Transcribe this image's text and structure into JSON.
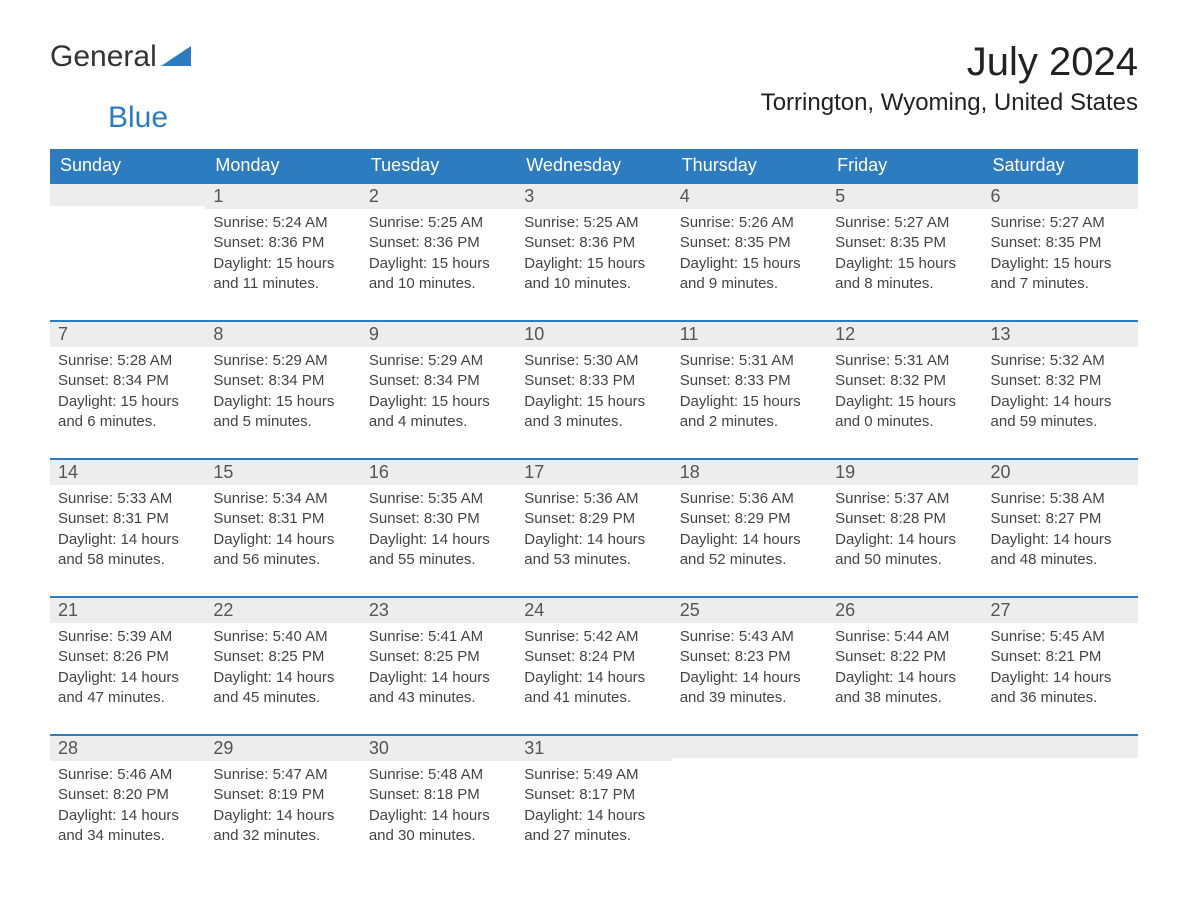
{
  "brand": {
    "general": "General",
    "blue": "Blue"
  },
  "title": {
    "month": "July 2024",
    "location": "Torrington, Wyoming, United States"
  },
  "colors": {
    "header_bg": "#2e7cc0",
    "header_text": "#ffffff",
    "daynum_bg": "#ededed",
    "daynum_border": "#2e7cc0",
    "body_bg": "#ffffff",
    "text": "#333333",
    "brand_blue": "#2e7cc0"
  },
  "weekdays": [
    "Sunday",
    "Monday",
    "Tuesday",
    "Wednesday",
    "Thursday",
    "Friday",
    "Saturday"
  ],
  "weeks": [
    [
      {
        "n": "",
        "sr": "",
        "ss": "",
        "dl": ""
      },
      {
        "n": "1",
        "sr": "Sunrise: 5:24 AM",
        "ss": "Sunset: 8:36 PM",
        "dl": "Daylight: 15 hours and 11 minutes."
      },
      {
        "n": "2",
        "sr": "Sunrise: 5:25 AM",
        "ss": "Sunset: 8:36 PM",
        "dl": "Daylight: 15 hours and 10 minutes."
      },
      {
        "n": "3",
        "sr": "Sunrise: 5:25 AM",
        "ss": "Sunset: 8:36 PM",
        "dl": "Daylight: 15 hours and 10 minutes."
      },
      {
        "n": "4",
        "sr": "Sunrise: 5:26 AM",
        "ss": "Sunset: 8:35 PM",
        "dl": "Daylight: 15 hours and 9 minutes."
      },
      {
        "n": "5",
        "sr": "Sunrise: 5:27 AM",
        "ss": "Sunset: 8:35 PM",
        "dl": "Daylight: 15 hours and 8 minutes."
      },
      {
        "n": "6",
        "sr": "Sunrise: 5:27 AM",
        "ss": "Sunset: 8:35 PM",
        "dl": "Daylight: 15 hours and 7 minutes."
      }
    ],
    [
      {
        "n": "7",
        "sr": "Sunrise: 5:28 AM",
        "ss": "Sunset: 8:34 PM",
        "dl": "Daylight: 15 hours and 6 minutes."
      },
      {
        "n": "8",
        "sr": "Sunrise: 5:29 AM",
        "ss": "Sunset: 8:34 PM",
        "dl": "Daylight: 15 hours and 5 minutes."
      },
      {
        "n": "9",
        "sr": "Sunrise: 5:29 AM",
        "ss": "Sunset: 8:34 PM",
        "dl": "Daylight: 15 hours and 4 minutes."
      },
      {
        "n": "10",
        "sr": "Sunrise: 5:30 AM",
        "ss": "Sunset: 8:33 PM",
        "dl": "Daylight: 15 hours and 3 minutes."
      },
      {
        "n": "11",
        "sr": "Sunrise: 5:31 AM",
        "ss": "Sunset: 8:33 PM",
        "dl": "Daylight: 15 hours and 2 minutes."
      },
      {
        "n": "12",
        "sr": "Sunrise: 5:31 AM",
        "ss": "Sunset: 8:32 PM",
        "dl": "Daylight: 15 hours and 0 minutes."
      },
      {
        "n": "13",
        "sr": "Sunrise: 5:32 AM",
        "ss": "Sunset: 8:32 PM",
        "dl": "Daylight: 14 hours and 59 minutes."
      }
    ],
    [
      {
        "n": "14",
        "sr": "Sunrise: 5:33 AM",
        "ss": "Sunset: 8:31 PM",
        "dl": "Daylight: 14 hours and 58 minutes."
      },
      {
        "n": "15",
        "sr": "Sunrise: 5:34 AM",
        "ss": "Sunset: 8:31 PM",
        "dl": "Daylight: 14 hours and 56 minutes."
      },
      {
        "n": "16",
        "sr": "Sunrise: 5:35 AM",
        "ss": "Sunset: 8:30 PM",
        "dl": "Daylight: 14 hours and 55 minutes."
      },
      {
        "n": "17",
        "sr": "Sunrise: 5:36 AM",
        "ss": "Sunset: 8:29 PM",
        "dl": "Daylight: 14 hours and 53 minutes."
      },
      {
        "n": "18",
        "sr": "Sunrise: 5:36 AM",
        "ss": "Sunset: 8:29 PM",
        "dl": "Daylight: 14 hours and 52 minutes."
      },
      {
        "n": "19",
        "sr": "Sunrise: 5:37 AM",
        "ss": "Sunset: 8:28 PM",
        "dl": "Daylight: 14 hours and 50 minutes."
      },
      {
        "n": "20",
        "sr": "Sunrise: 5:38 AM",
        "ss": "Sunset: 8:27 PM",
        "dl": "Daylight: 14 hours and 48 minutes."
      }
    ],
    [
      {
        "n": "21",
        "sr": "Sunrise: 5:39 AM",
        "ss": "Sunset: 8:26 PM",
        "dl": "Daylight: 14 hours and 47 minutes."
      },
      {
        "n": "22",
        "sr": "Sunrise: 5:40 AM",
        "ss": "Sunset: 8:25 PM",
        "dl": "Daylight: 14 hours and 45 minutes."
      },
      {
        "n": "23",
        "sr": "Sunrise: 5:41 AM",
        "ss": "Sunset: 8:25 PM",
        "dl": "Daylight: 14 hours and 43 minutes."
      },
      {
        "n": "24",
        "sr": "Sunrise: 5:42 AM",
        "ss": "Sunset: 8:24 PM",
        "dl": "Daylight: 14 hours and 41 minutes."
      },
      {
        "n": "25",
        "sr": "Sunrise: 5:43 AM",
        "ss": "Sunset: 8:23 PM",
        "dl": "Daylight: 14 hours and 39 minutes."
      },
      {
        "n": "26",
        "sr": "Sunrise: 5:44 AM",
        "ss": "Sunset: 8:22 PM",
        "dl": "Daylight: 14 hours and 38 minutes."
      },
      {
        "n": "27",
        "sr": "Sunrise: 5:45 AM",
        "ss": "Sunset: 8:21 PM",
        "dl": "Daylight: 14 hours and 36 minutes."
      }
    ],
    [
      {
        "n": "28",
        "sr": "Sunrise: 5:46 AM",
        "ss": "Sunset: 8:20 PM",
        "dl": "Daylight: 14 hours and 34 minutes."
      },
      {
        "n": "29",
        "sr": "Sunrise: 5:47 AM",
        "ss": "Sunset: 8:19 PM",
        "dl": "Daylight: 14 hours and 32 minutes."
      },
      {
        "n": "30",
        "sr": "Sunrise: 5:48 AM",
        "ss": "Sunset: 8:18 PM",
        "dl": "Daylight: 14 hours and 30 minutes."
      },
      {
        "n": "31",
        "sr": "Sunrise: 5:49 AM",
        "ss": "Sunset: 8:17 PM",
        "dl": "Daylight: 14 hours and 27 minutes."
      },
      {
        "n": "",
        "sr": "",
        "ss": "",
        "dl": ""
      },
      {
        "n": "",
        "sr": "",
        "ss": "",
        "dl": ""
      },
      {
        "n": "",
        "sr": "",
        "ss": "",
        "dl": ""
      }
    ]
  ]
}
